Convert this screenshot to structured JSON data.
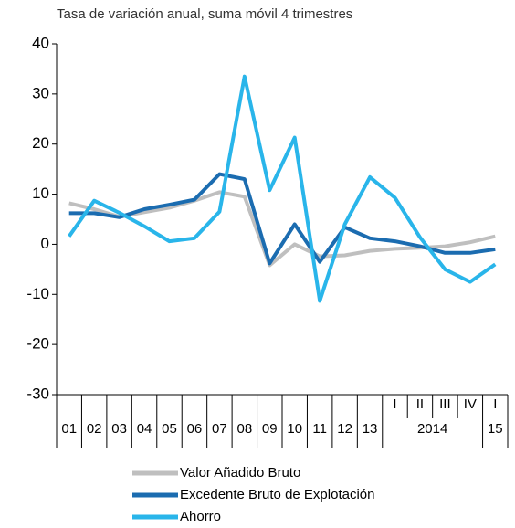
{
  "chart_data": {
    "type": "line",
    "subtitle": "Tasa de variación anual, suma móvil 4 trimestres",
    "categories": [
      "01",
      "02",
      "03",
      "04",
      "05",
      "06",
      "07",
      "08",
      "09",
      "10",
      "11",
      "12",
      "13",
      "I",
      "II",
      "III",
      "IV",
      "I"
    ],
    "x_groups": [
      {
        "label": "2014",
        "start": 13,
        "end": 16
      },
      {
        "label": "15",
        "start": 17,
        "end": 17
      }
    ],
    "series": [
      {
        "name": "Valor Añadido Bruto",
        "color": "#bfbfbf",
        "values": [
          8.2,
          7,
          5.5,
          6.4,
          7.3,
          8.7,
          10.4,
          9.5,
          -4.2,
          0,
          -2.4,
          -2.2,
          -1.3,
          -0.9,
          -0.7,
          -0.4,
          0.4,
          1.6
        ]
      },
      {
        "name": "Excedente Bruto de Explotación",
        "color": "#1b6cb0",
        "values": [
          6.2,
          6.2,
          5.4,
          7,
          7.9,
          8.9,
          14,
          13,
          -3.8,
          4,
          -3.5,
          3.4,
          1.2,
          0.6,
          -0.4,
          -1.7,
          -1.7,
          -1
        ]
      },
      {
        "name": "Ahorro",
        "color": "#29b5ea",
        "values": [
          1.6,
          8.7,
          6.3,
          3.6,
          0.6,
          1.2,
          6.5,
          33.5,
          10.8,
          21.3,
          -11.3,
          4,
          13.4,
          9.3,
          1.4,
          -5,
          -7.5,
          -4
        ]
      }
    ],
    "ylim": [
      -30,
      40
    ],
    "yticks": [
      -30,
      -20,
      -10,
      0,
      10,
      20,
      30,
      40
    ],
    "grid": false
  }
}
